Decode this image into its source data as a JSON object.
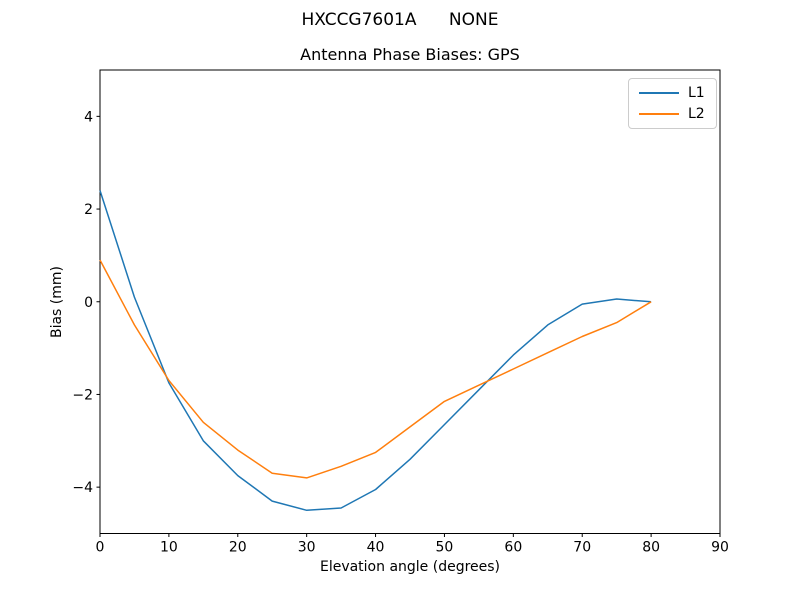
{
  "figure": {
    "suptitle": "HXCCG7601A      NONE",
    "background_color": "#ffffff",
    "text_color": "#000000"
  },
  "chart_data": {
    "type": "line",
    "suptitle": "HXCCG7601A      NONE",
    "title": "Antenna Phase Biases: GPS",
    "xlabel": "Elevation angle (degrees)",
    "ylabel": "Bias (mm)",
    "xlim": [
      0,
      90
    ],
    "ylim": [
      -5,
      5
    ],
    "xticks": [
      0,
      10,
      20,
      30,
      40,
      50,
      60,
      70,
      80,
      90
    ],
    "yticks": [
      -4,
      -2,
      0,
      2,
      4
    ],
    "grid": false,
    "legend_position": "upper right",
    "legend_edge_color": "#cccccc",
    "x": [
      0,
      5,
      10,
      15,
      20,
      25,
      30,
      35,
      40,
      45,
      50,
      55,
      60,
      65,
      70,
      75,
      80
    ],
    "series": [
      {
        "name": "L1",
        "color": "#1f77b4",
        "values": [
          2.4,
          0.1,
          -1.75,
          -3.0,
          -3.75,
          -4.3,
          -4.5,
          -4.45,
          -4.05,
          -3.4,
          -2.65,
          -1.9,
          -1.15,
          -0.5,
          -0.05,
          0.06,
          0.0
        ]
      },
      {
        "name": "L2",
        "color": "#ff7f0e",
        "values": [
          0.9,
          -0.5,
          -1.7,
          -2.6,
          -3.2,
          -3.7,
          -3.8,
          -3.55,
          -3.25,
          -2.7,
          -2.15,
          -1.8,
          -1.45,
          -1.1,
          -0.75,
          -0.45,
          0.0
        ]
      }
    ]
  }
}
